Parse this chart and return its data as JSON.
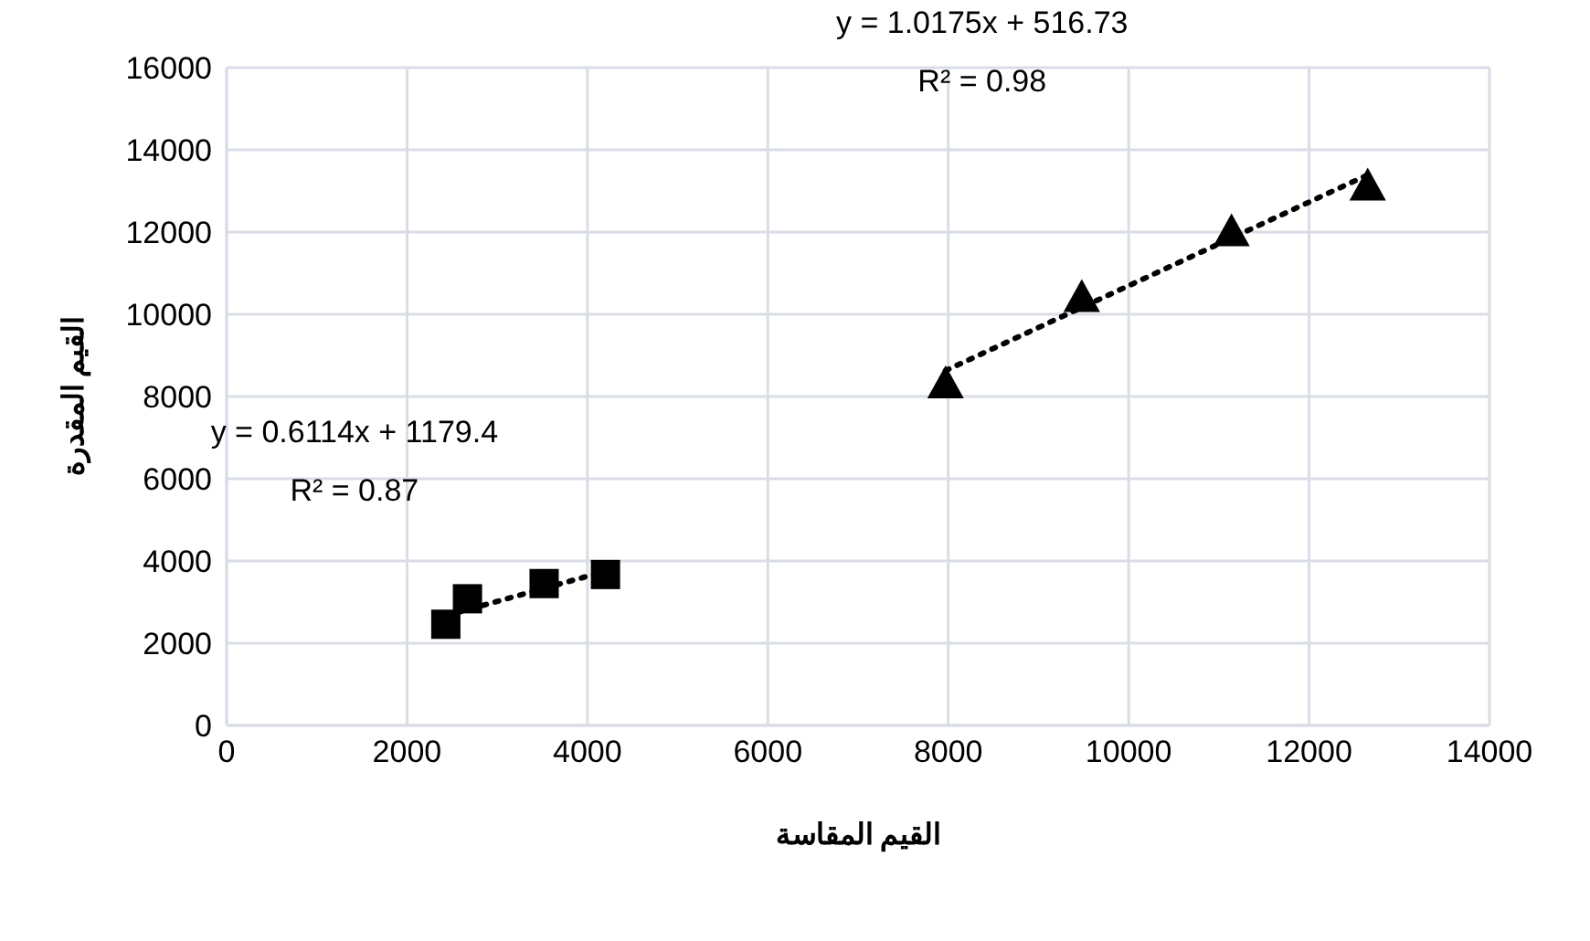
{
  "chart_data": {
    "type": "scatter",
    "xlabel": "القيم المقاسة",
    "ylabel": "القيم المقدرة",
    "xlim": [
      0,
      14000
    ],
    "xticks": [
      0,
      2000,
      4000,
      6000,
      8000,
      10000,
      12000,
      14000
    ],
    "ylim": [
      0,
      16000
    ],
    "yticks": [
      0,
      2000,
      4000,
      6000,
      8000,
      10000,
      12000,
      14000,
      16000
    ],
    "grid": true,
    "annotations": [
      "y = 0.6114x + 1179.4",
      "R² = 0.87",
      "y = 1.0175x + 516.73",
      "R² = 0.98"
    ],
    "series": [
      {
        "marker": "square",
        "color": "#000000",
        "x": [
          2430,
          2670,
          3520,
          4200
        ],
        "values": [
          2460,
          3080,
          3450,
          3670
        ]
      },
      {
        "marker": "triangle",
        "color": "#000000",
        "x": [
          7970,
          9480,
          11140,
          12650
        ],
        "values": [
          8310,
          10410,
          12010,
          13120
        ]
      },
      {
        "type": "line",
        "line_style": "dotted",
        "marker": "none",
        "color": "#000000",
        "x": [
          2430,
          4200
        ],
        "values": [
          2670,
          3750
        ]
      },
      {
        "type": "line",
        "line_style": "dotted",
        "marker": "none",
        "color": "#000000",
        "x": [
          7970,
          12650
        ],
        "values": [
          8630,
          13390
        ]
      }
    ]
  }
}
